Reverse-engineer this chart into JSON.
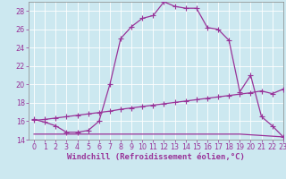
{
  "xlabel": "Windchill (Refroidissement éolien,°C)",
  "bg_color": "#cce8f0",
  "grid_color": "#aacccc",
  "line_color": "#993399",
  "line1": {
    "x": [
      0,
      1,
      2,
      3,
      4,
      5,
      6,
      7,
      8,
      9,
      10,
      11,
      12,
      13,
      14,
      15,
      16,
      17,
      18,
      19,
      20,
      21,
      22,
      23
    ],
    "y": [
      16.2,
      15.9,
      15.5,
      14.8,
      14.8,
      15.0,
      16.0,
      20.0,
      25.0,
      26.3,
      27.2,
      27.5,
      29.0,
      28.5,
      28.3,
      28.3,
      26.2,
      26.0,
      24.8,
      19.2,
      21.0,
      16.5,
      15.5,
      14.3
    ]
  },
  "line2": {
    "x": [
      0,
      1,
      2,
      3,
      4,
      5,
      6,
      7,
      8,
      9,
      10,
      11,
      12,
      13,
      14,
      15,
      16,
      17,
      18,
      19,
      20,
      21,
      22,
      23
    ],
    "y": [
      16.1,
      16.2,
      16.35,
      16.5,
      16.65,
      16.8,
      16.95,
      17.1,
      17.3,
      17.45,
      17.6,
      17.75,
      17.9,
      18.05,
      18.2,
      18.35,
      18.5,
      18.65,
      18.8,
      18.95,
      19.1,
      19.3,
      19.0,
      19.5
    ]
  },
  "line3": {
    "x": [
      0,
      10,
      19,
      23
    ],
    "y": [
      14.6,
      14.6,
      14.6,
      14.3
    ]
  },
  "xlim": [
    -0.5,
    23
  ],
  "ylim": [
    14,
    29
  ],
  "xticks": [
    0,
    1,
    2,
    3,
    4,
    5,
    6,
    7,
    8,
    9,
    10,
    11,
    12,
    13,
    14,
    15,
    16,
    17,
    18,
    19,
    20,
    21,
    22,
    23
  ],
  "yticks": [
    14,
    16,
    18,
    20,
    22,
    24,
    26,
    28
  ],
  "marker": "+",
  "markersize": 4,
  "linewidth": 0.9,
  "fontsize_label": 6.5,
  "fontsize_tick": 5.8
}
